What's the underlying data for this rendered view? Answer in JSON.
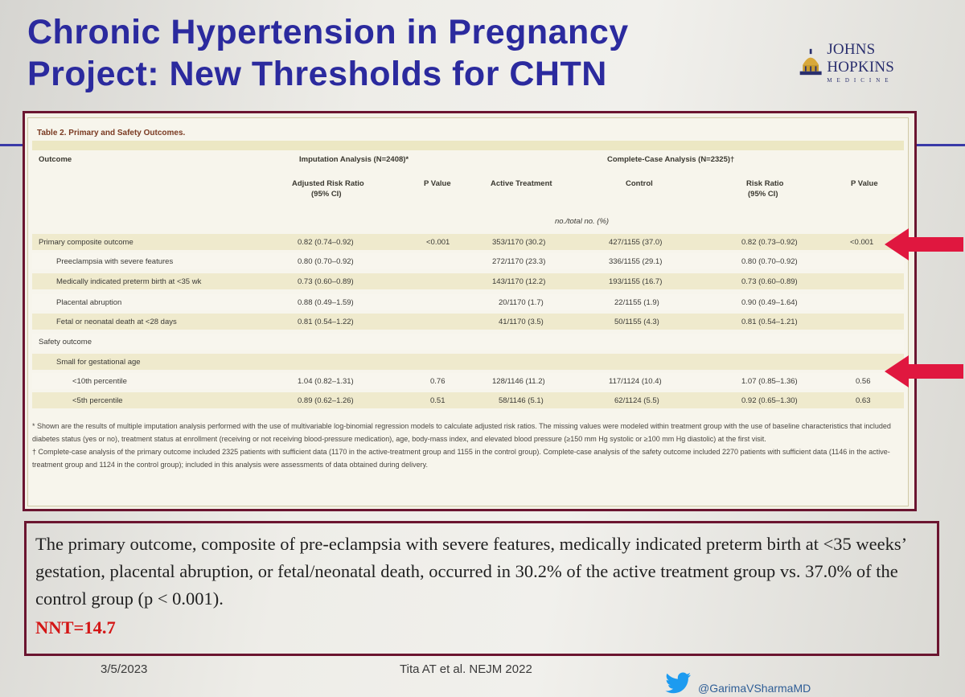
{
  "title": {
    "line1": "Chronic Hypertension in Pregnancy",
    "line2": "Project: New Thresholds for CHTN"
  },
  "logo": {
    "name": "JOHNS HOPKINS",
    "sub": "MEDICINE",
    "icon": "dome-icon"
  },
  "table": {
    "caption": "Table 2. Primary and Safety Outcomes.",
    "headers": {
      "outcome": "Outcome",
      "imputation": "Imputation Analysis (N=2408)*",
      "complete": "Complete-Case Analysis (N=2325)†",
      "adj_rr_1": "Adjusted Risk Ratio",
      "adj_rr_2": "(95% CI)",
      "pvalue": "P Value",
      "active": "Active Treatment",
      "control": "Control",
      "rr_1": "Risk Ratio",
      "rr_2": "(95% CI)",
      "pvalue2": "P Value",
      "units": "no./total no. (%)"
    },
    "rows": [
      {
        "outcome": "Primary composite outcome",
        "adj": "0.82 (0.74–0.92)",
        "p": "<0.001",
        "active": "353/1170 (30.2)",
        "control": "427/1155 (37.0)",
        "rr": "0.82 (0.73–0.92)",
        "p2": "<0.001"
      },
      {
        "outcome": "Preeclampsia with severe features",
        "adj": "0.80 (0.70–0.92)",
        "p": "",
        "active": "272/1170 (23.3)",
        "control": "336/1155 (29.1)",
        "rr": "0.80 (0.70–0.92)",
        "p2": ""
      },
      {
        "outcome": "Medically indicated preterm birth at <35 wk",
        "adj": "0.73 (0.60–0.89)",
        "p": "",
        "active": "143/1170 (12.2)",
        "control": "193/1155 (16.7)",
        "rr": "0.73 (0.60–0.89)",
        "p2": ""
      },
      {
        "outcome": "Placental abruption",
        "adj": "0.88 (0.49–1.59)",
        "p": "",
        "active": "20/1170 (1.7)",
        "control": "22/1155 (1.9)",
        "rr": "0.90 (0.49–1.64)",
        "p2": ""
      },
      {
        "outcome": "Fetal or neonatal death at <28 days",
        "adj": "0.81 (0.54–1.22)",
        "p": "",
        "active": "41/1170 (3.5)",
        "control": "50/1155 (4.3)",
        "rr": "0.81 (0.54–1.21)",
        "p2": ""
      },
      {
        "outcome": "Safety outcome",
        "adj": "",
        "p": "",
        "active": "",
        "control": "",
        "rr": "",
        "p2": ""
      },
      {
        "outcome": "Small for gestational age",
        "adj": "",
        "p": "",
        "active": "",
        "control": "",
        "rr": "",
        "p2": ""
      },
      {
        "outcome": "<10th percentile",
        "adj": "1.04 (0.82–1.31)",
        "p": "0.76",
        "active": "128/1146 (11.2)",
        "control": "117/1124 (10.4)",
        "rr": "1.07 (0.85–1.36)",
        "p2": "0.56"
      },
      {
        "outcome": "<5th percentile",
        "adj": "0.89 (0.62–1.26)",
        "p": "0.51",
        "active": "58/1146 (5.1)",
        "control": "62/1124 (5.5)",
        "rr": "0.92 (0.65–1.30)",
        "p2": "0.63"
      }
    ],
    "footnote1": "* Shown are the results of multiple imputation analysis performed with the use of multivariable log-binomial regression models to calculate adjusted risk ratios. The missing values were modeled within treatment group with the use of baseline characteristics that included diabetes status (yes or no), treatment status at enrollment (receiving or not receiving blood-pressure medication), age, body-mass index, and elevated blood pressure (≥150 mm Hg systolic or ≥100 mm Hg diastolic) at the first visit.",
    "footnote2": "† Complete-case analysis of the primary outcome included 2325 patients with sufficient data (1170 in the active-treatment group and 1155 in the control group). Complete-case analysis of the safety outcome included 2270 patients with sufficient data (1146 in the active-treatment group and 1124 in the control group); included in this analysis were assessments of data obtained during delivery."
  },
  "summary": {
    "text": "The primary outcome, composite of pre-eclampsia with severe features, medically indicated preterm birth at <35 weeks’ gestation, placental abruption, or fetal/neonatal death, occurred in 30.2% of the active treatment group vs. 37.0% of the control group (p < 0.001).",
    "nnt": "NNT=14.7"
  },
  "footer": {
    "date": "3/5/2023",
    "citation": "Tita AT et al. NEJM 2022",
    "twitter_handle": "@GarimaVSharmaMD"
  },
  "colors": {
    "title": "#2b2a9e",
    "frame": "#6b1530",
    "arrow": "#e0173f",
    "nnt": "#d41616"
  }
}
